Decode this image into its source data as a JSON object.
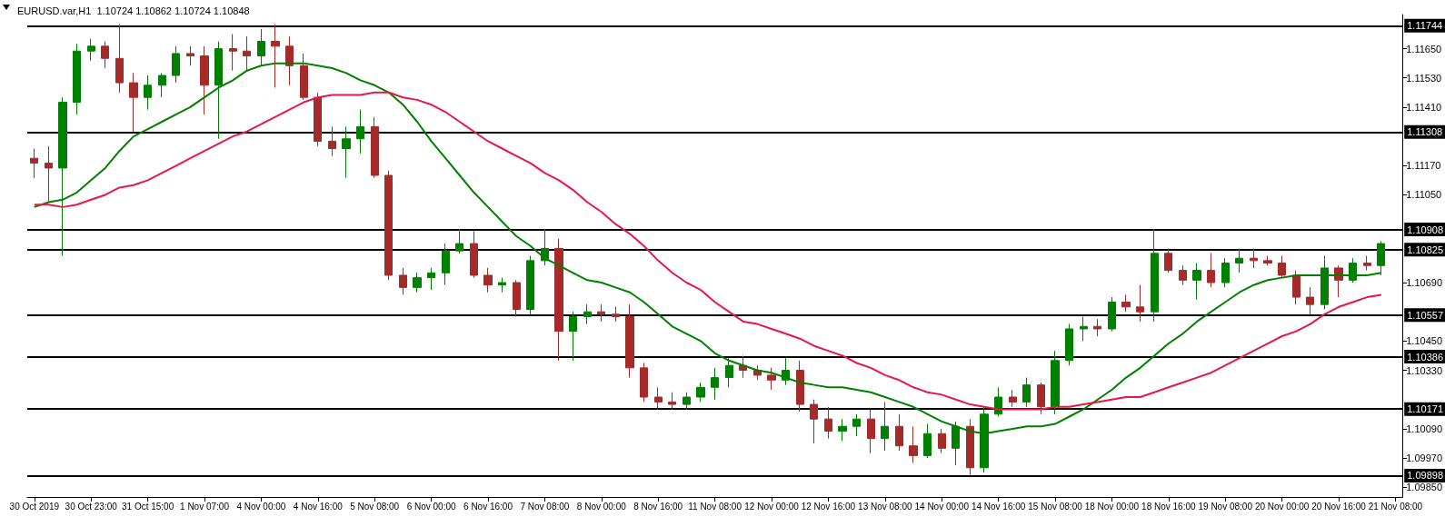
{
  "chart_data": {
    "type": "candlestick",
    "title": "EURUSD.var,H1  1.10724 1.10862 1.10724 1.10848",
    "categories": [
      "30 Oct 2019",
      null,
      null,
      null,
      "30 Oct 23:00",
      null,
      null,
      null,
      "31 Oct 15:00",
      null,
      null,
      null,
      "1 Nov 07:00",
      null,
      null,
      null,
      "4 Nov 00:00",
      null,
      null,
      null,
      "4 Nov 16:00",
      null,
      null,
      null,
      "5 Nov 08:00",
      null,
      null,
      null,
      "6 Nov 00:00",
      null,
      null,
      null,
      "6 Nov 16:00",
      null,
      null,
      null,
      "7 Nov 08:00",
      null,
      null,
      null,
      "8 Nov 00:00",
      null,
      null,
      null,
      "8 Nov 16:00",
      null,
      null,
      null,
      "11 Nov 08:00",
      null,
      null,
      null,
      "12 Nov 00:00",
      null,
      null,
      null,
      "12 Nov 16:00",
      null,
      null,
      null,
      "13 Nov 08:00",
      null,
      null,
      null,
      "14 Nov 00:00",
      null,
      null,
      null,
      "14 Nov 16:00",
      null,
      null,
      null,
      "15 Nov 08:00",
      null,
      null,
      null,
      "18 Nov 00:00",
      null,
      null,
      null,
      "18 Nov 16:00",
      null,
      null,
      null,
      "19 Nov 08:00",
      null,
      null,
      null,
      "20 Nov 00:00",
      null,
      null,
      null,
      "20 Nov 16:00",
      null,
      null,
      null,
      "21 Nov 08:00"
    ],
    "ohlc": [
      [
        1.112,
        1.1124,
        1.1112,
        1.1118
      ],
      [
        1.1118,
        1.1125,
        1.1102,
        1.1116
      ],
      [
        1.1116,
        1.1145,
        1.108,
        1.1143
      ],
      [
        1.1143,
        1.1167,
        1.1138,
        1.1164
      ],
      [
        1.1164,
        1.1169,
        1.116,
        1.1166
      ],
      [
        1.1166,
        1.1168,
        1.1157,
        1.1161
      ],
      [
        1.1161,
        1.1175,
        1.1147,
        1.1151
      ],
      [
        1.1151,
        1.1155,
        1.1131,
        1.1145
      ],
      [
        1.1145,
        1.1154,
        1.114,
        1.115
      ],
      [
        1.115,
        1.1155,
        1.1145,
        1.1154
      ],
      [
        1.1154,
        1.1166,
        1.1151,
        1.1163
      ],
      [
        1.1163,
        1.1166,
        1.1158,
        1.1162
      ],
      [
        1.1162,
        1.1166,
        1.1138,
        1.115
      ],
      [
        1.115,
        1.1168,
        1.1128,
        1.1165
      ],
      [
        1.1165,
        1.1171,
        1.1156,
        1.1164
      ],
      [
        1.1164,
        1.117,
        1.1156,
        1.1162
      ],
      [
        1.1162,
        1.1173,
        1.1158,
        1.1168
      ],
      [
        1.1168,
        1.1175,
        1.1149,
        1.1166
      ],
      [
        1.1166,
        1.117,
        1.115,
        1.1158
      ],
      [
        1.1158,
        1.1163,
        1.1144,
        1.1145
      ],
      [
        1.1145,
        1.1147,
        1.1125,
        1.1127
      ],
      [
        1.1127,
        1.1133,
        1.1121,
        1.1124
      ],
      [
        1.1124,
        1.1133,
        1.1112,
        1.1128
      ],
      [
        1.1128,
        1.114,
        1.1122,
        1.1133
      ],
      [
        1.1133,
        1.1137,
        1.1112,
        1.1113
      ],
      [
        1.1113,
        1.1115,
        1.107,
        1.1072
      ],
      [
        1.1072,
        1.1075,
        1.1064,
        1.1067
      ],
      [
        1.1067,
        1.1073,
        1.1065,
        1.1071
      ],
      [
        1.1071,
        1.1075,
        1.1066,
        1.1073
      ],
      [
        1.1073,
        1.1085,
        1.1068,
        1.1082
      ],
      [
        1.1082,
        1.1091,
        1.1081,
        1.1085
      ],
      [
        1.1085,
        1.109,
        1.1071,
        1.1072
      ],
      [
        1.1072,
        1.1075,
        1.1065,
        1.1068
      ],
      [
        1.1068,
        1.1071,
        1.1065,
        1.1069
      ],
      [
        1.1069,
        1.107,
        1.1055,
        1.1058
      ],
      [
        1.1058,
        1.108,
        1.1056,
        1.1078
      ],
      [
        1.1078,
        1.1091,
        1.1076,
        1.1083
      ],
      [
        1.1083,
        1.1087,
        1.1037,
        1.1049
      ],
      [
        1.1049,
        1.1057,
        1.1037,
        1.1055
      ],
      [
        1.1055,
        1.106,
        1.1052,
        1.1057
      ],
      [
        1.1057,
        1.106,
        1.1053,
        1.1056
      ],
      [
        1.1056,
        1.1059,
        1.1053,
        1.1055
      ],
      [
        1.1055,
        1.106,
        1.103,
        1.1034
      ],
      [
        1.1034,
        1.1036,
        1.102,
        1.1022
      ],
      [
        1.1022,
        1.1026,
        1.1017,
        1.102
      ],
      [
        1.102,
        1.1024,
        1.1017,
        1.1019
      ],
      [
        1.1019,
        1.1024,
        1.1017,
        1.1022
      ],
      [
        1.1022,
        1.1028,
        1.102,
        1.1026
      ],
      [
        1.1026,
        1.1034,
        1.1021,
        1.103
      ],
      [
        1.103,
        1.1038,
        1.1026,
        1.1035
      ],
      [
        1.1035,
        1.1039,
        1.103,
        1.1033
      ],
      [
        1.1033,
        1.1035,
        1.1029,
        1.1031
      ],
      [
        1.1031,
        1.1034,
        1.1025,
        1.1029
      ],
      [
        1.1029,
        1.1038,
        1.1027,
        1.1033
      ],
      [
        1.1033,
        1.1037,
        1.1016,
        1.1019
      ],
      [
        1.1019,
        1.1021,
        1.1003,
        1.1013
      ],
      [
        1.1013,
        1.1018,
        1.1005,
        1.1008
      ],
      [
        1.1008,
        1.1013,
        1.1004,
        1.101
      ],
      [
        1.101,
        1.1015,
        1.1006,
        1.1013
      ],
      [
        1.1013,
        1.1017,
        1.0999,
        1.1005
      ],
      [
        1.1005,
        1.102,
        1.1,
        1.101
      ],
      [
        1.101,
        1.1015,
        1.1,
        1.1002
      ],
      [
        1.1002,
        1.101,
        1.0995,
        1.0998
      ],
      [
        1.0998,
        1.1011,
        1.0997,
        1.1007
      ],
      [
        1.1007,
        1.1009,
        1.0999,
        1.1001
      ],
      [
        1.1001,
        1.1012,
        1.0994,
        1.101
      ],
      [
        1.101,
        1.1013,
        1.099,
        1.0993
      ],
      [
        1.0993,
        1.1018,
        1.0991,
        1.1015
      ],
      [
        1.1015,
        1.1026,
        1.1014,
        1.1022
      ],
      [
        1.1022,
        1.1025,
        1.1018,
        1.102
      ],
      [
        1.102,
        1.103,
        1.1018,
        1.1027
      ],
      [
        1.1027,
        1.1028,
        1.1015,
        1.1018
      ],
      [
        1.1018,
        1.1041,
        1.1015,
        1.1037
      ],
      [
        1.1037,
        1.1052,
        1.1035,
        1.105
      ],
      [
        1.105,
        1.1055,
        1.1045,
        1.1051
      ],
      [
        1.1051,
        1.1054,
        1.1047,
        1.105
      ],
      [
        1.105,
        1.1063,
        1.1049,
        1.1061
      ],
      [
        1.1061,
        1.1064,
        1.1057,
        1.1059
      ],
      [
        1.1059,
        1.1068,
        1.1053,
        1.1057
      ],
      [
        1.1057,
        1.1091,
        1.1053,
        1.1081
      ],
      [
        1.1081,
        1.1083,
        1.1073,
        1.1074
      ],
      [
        1.1074,
        1.1076,
        1.1068,
        1.107
      ],
      [
        1.107,
        1.1077,
        1.1062,
        1.1074
      ],
      [
        1.1074,
        1.1081,
        1.1067,
        1.1069
      ],
      [
        1.1069,
        1.1079,
        1.1067,
        1.1077
      ],
      [
        1.1077,
        1.1083,
        1.1073,
        1.1079
      ],
      [
        1.1079,
        1.1083,
        1.1075,
        1.1078
      ],
      [
        1.1078,
        1.108,
        1.1076,
        1.1077
      ],
      [
        1.1077,
        1.108,
        1.1071,
        1.1072
      ],
      [
        1.1072,
        1.1074,
        1.106,
        1.1063
      ],
      [
        1.1063,
        1.1067,
        1.1056,
        1.106
      ],
      [
        1.106,
        1.108,
        1.1058,
        1.1075
      ],
      [
        1.1075,
        1.1076,
        1.1063,
        1.107
      ],
      [
        1.107,
        1.1079,
        1.1069,
        1.1077
      ],
      [
        1.1077,
        1.108,
        1.1074,
        1.1076
      ],
      [
        1.1076,
        1.1086,
        1.1072,
        1.1085
      ],
      null
    ],
    "colors": [
      "#a52a2a",
      "#a52a2a",
      "#008000",
      "#008000",
      "#008000",
      "#a52a2a",
      "#a52a2a",
      "#a52a2a",
      "#008000",
      "#008000",
      "#008000",
      "#a52a2a",
      "#a52a2a",
      "#008000",
      "#a52a2a",
      "#a52a2a",
      "#008000",
      "#a52a2a",
      "#a52a2a",
      "#a52a2a",
      "#a52a2a",
      "#a52a2a",
      "#008000",
      "#008000",
      "#a52a2a",
      "#a52a2a",
      "#a52a2a",
      "#008000",
      "#008000",
      "#008000",
      "#008000",
      "#a52a2a",
      "#a52a2a",
      "#008000",
      "#a52a2a",
      "#008000",
      "#008000",
      "#a52a2a",
      "#008000",
      "#008000",
      "#a52a2a",
      "#a52a2a",
      "#a52a2a",
      "#a52a2a",
      "#a52a2a",
      "#a52a2a",
      "#008000",
      "#008000",
      "#008000",
      "#008000",
      "#a52a2a",
      "#a52a2a",
      "#a52a2a",
      "#008000",
      "#a52a2a",
      "#a52a2a",
      "#a52a2a",
      "#008000",
      "#008000",
      "#a52a2a",
      "#008000",
      "#a52a2a",
      "#a52a2a",
      "#008000",
      "#a52a2a",
      "#008000",
      "#a52a2a",
      "#008000",
      "#008000",
      "#a52a2a",
      "#008000",
      "#a52a2a",
      "#008000",
      "#008000",
      "#008000",
      "#a52a2a",
      "#008000",
      "#a52a2a",
      "#a52a2a",
      "#008000",
      "#a52a2a",
      "#a52a2a",
      "#008000",
      "#a52a2a",
      "#008000",
      "#008000",
      "#a52a2a",
      "#a52a2a",
      "#a52a2a",
      "#a52a2a",
      "#a52a2a",
      "#008000",
      "#a52a2a",
      "#008000",
      "#a52a2a",
      "#008000",
      null
    ],
    "series": [
      {
        "type": "line",
        "color": "#008000",
        "values": [
          1.11,
          1.1102,
          1.1103,
          1.1106,
          1.1111,
          1.1116,
          1.1123,
          1.1129,
          1.1132,
          1.1135,
          1.1138,
          1.1141,
          1.1145,
          1.1149,
          1.1152,
          1.1156,
          1.1158,
          1.1159,
          1.1159,
          1.1159,
          1.1158,
          1.1157,
          1.1155,
          1.1152,
          1.115,
          1.1147,
          1.1142,
          1.1135,
          1.1127,
          1.112,
          1.1113,
          1.1106,
          1.11,
          1.1094,
          1.1088,
          1.1084,
          1.1079,
          1.1076,
          1.1073,
          1.107,
          1.1069,
          1.1067,
          1.1065,
          1.1061,
          1.1056,
          1.1051,
          1.1048,
          1.1045,
          1.104,
          1.1037,
          1.1035,
          1.1033,
          1.1032,
          1.103,
          1.1028,
          1.1027,
          1.1026,
          1.1026,
          1.1025,
          1.1024,
          1.1022,
          1.102,
          1.1018,
          1.1015,
          1.1012,
          1.101,
          1.1008,
          1.1007,
          1.1008,
          1.1009,
          1.101,
          1.101,
          1.1011,
          1.1014,
          1.1017,
          1.1021,
          1.1025,
          1.103,
          1.1034,
          1.1039,
          1.1044,
          1.1048,
          1.1053,
          1.1057,
          1.1061,
          1.1065,
          1.1068,
          1.107,
          1.1071,
          1.1072,
          1.1072,
          1.1072,
          1.1072,
          1.1072,
          1.1072,
          1.1073,
          null
        ]
      },
      {
        "type": "line",
        "color": "#e8174a",
        "values": [
          1.1101,
          1.1101,
          1.11,
          1.1101,
          1.1103,
          1.1105,
          1.1108,
          1.1109,
          1.1111,
          1.1114,
          1.1117,
          1.112,
          1.1123,
          1.1126,
          1.1129,
          1.1131,
          1.1134,
          1.1137,
          1.114,
          1.1143,
          1.1145,
          1.1146,
          1.1146,
          1.1146,
          1.1147,
          1.1147,
          1.1145,
          1.1144,
          1.1142,
          1.1139,
          1.1135,
          1.1131,
          1.1127,
          1.1124,
          1.1121,
          1.1118,
          1.1114,
          1.1111,
          1.1107,
          1.1102,
          1.1098,
          1.1093,
          1.1089,
          1.1084,
          1.1078,
          1.1073,
          1.1069,
          1.1066,
          1.1061,
          1.1057,
          1.1053,
          1.1052,
          1.105,
          1.1048,
          1.1046,
          1.1043,
          1.1041,
          1.1039,
          1.1036,
          1.1034,
          1.1031,
          1.1029,
          1.1026,
          1.1024,
          1.1023,
          1.1021,
          1.1019,
          1.1018,
          1.1017,
          1.1017,
          1.1017,
          1.1017,
          1.1018,
          1.1018,
          1.1019,
          1.102,
          1.1021,
          1.1022,
          1.1022,
          1.1024,
          1.1026,
          1.1028,
          1.103,
          1.1032,
          1.1035,
          1.1038,
          1.1041,
          1.1044,
          1.1047,
          1.1049,
          1.1052,
          1.1056,
          1.1059,
          1.1061,
          1.1063,
          1.1064,
          null
        ]
      }
    ],
    "marker": "none",
    "ylim": [
      1.0981,
      1.1179
    ],
    "yticks": [
      {
        "value": 1.0985,
        "label": "1.09850"
      },
      {
        "value": 1.0997,
        "label": "1.09970"
      },
      {
        "value": 1.1009,
        "label": "1.10090"
      },
      {
        "value": 1.1033,
        "label": "1.10330"
      },
      {
        "value": 1.1045,
        "label": "1.10450"
      },
      {
        "value": 1.1069,
        "label": "1.10690"
      },
      {
        "value": 1.1105,
        "label": "1.11050"
      },
      {
        "value": 1.1117,
        "label": "1.11170"
      },
      {
        "value": 1.1141,
        "label": "1.11410"
      },
      {
        "value": 1.1153,
        "label": "1.11530"
      },
      {
        "value": 1.1165,
        "label": "1.11650"
      }
    ],
    "ref_lines": [
      {
        "axis": "y",
        "value": 1.11744,
        "label": "1.11744",
        "color": "#000000"
      },
      {
        "axis": "y",
        "value": 1.11308,
        "label": "1.11308",
        "color": "#000000"
      },
      {
        "axis": "y",
        "value": 1.10908,
        "label": "1.10908",
        "color": "#000000"
      },
      {
        "axis": "y",
        "value": 1.10825,
        "label": "1.10825",
        "color": "#000000"
      },
      {
        "axis": "y",
        "value": 1.10557,
        "label": "1.10557",
        "color": "#000000"
      },
      {
        "axis": "y",
        "value": 1.10386,
        "label": "1.10386",
        "color": "#000000"
      },
      {
        "axis": "y",
        "value": 1.10171,
        "label": "1.10171",
        "color": "#000000"
      },
      {
        "axis": "y",
        "value": 1.09898,
        "label": "1.09898",
        "color": "#000000"
      }
    ]
  }
}
